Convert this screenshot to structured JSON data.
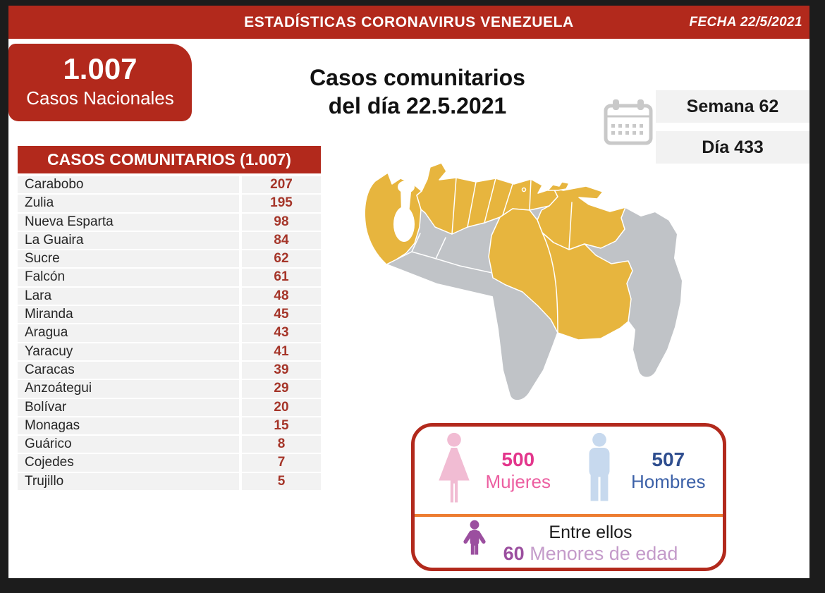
{
  "banner": {
    "title": "ESTADÍSTICAS CORONAVIRUS VENEZUELA",
    "date_label": "FECHA 22/5/2021"
  },
  "national": {
    "value": "1.007",
    "label": "Casos Nacionales"
  },
  "community_title": {
    "line1": "Casos comunitarios",
    "line2": "del día 22.5.2021"
  },
  "period": {
    "week": "Semana 62",
    "day": "Día 433"
  },
  "table": {
    "header": "CASOS COMUNITARIOS (1.007)",
    "rows": [
      {
        "state": "Carabobo",
        "cases": "207"
      },
      {
        "state": "Zulia",
        "cases": "195"
      },
      {
        "state": "Nueva Esparta",
        "cases": "98"
      },
      {
        "state": "La Guaira",
        "cases": "84"
      },
      {
        "state": "Sucre",
        "cases": "62"
      },
      {
        "state": "Falcón",
        "cases": "61"
      },
      {
        "state": "Lara",
        "cases": "48"
      },
      {
        "state": "Miranda",
        "cases": "45"
      },
      {
        "state": "Aragua",
        "cases": "43"
      },
      {
        "state": "Yaracuy",
        "cases": "41"
      },
      {
        "state": "Caracas",
        "cases": "39"
      },
      {
        "state": "Anzoátegui",
        "cases": "29"
      },
      {
        "state": "Bolívar",
        "cases": "20"
      },
      {
        "state": "Monagas",
        "cases": "15"
      },
      {
        "state": "Guárico",
        "cases": "8"
      },
      {
        "state": "Cojedes",
        "cases": "7"
      },
      {
        "state": "Trujillo",
        "cases": "5"
      }
    ]
  },
  "demographics": {
    "women": {
      "value": "500",
      "label": "Mujeres"
    },
    "men": {
      "value": "507",
      "label": "Hombres"
    },
    "minors": {
      "intro": "Entre ellos",
      "value": "60",
      "label": " Menores de edad"
    }
  },
  "chart_data": {
    "type": "table",
    "title": "CASOS COMUNITARIOS (1.007)",
    "categories": [
      "Carabobo",
      "Zulia",
      "Nueva Esparta",
      "La Guaira",
      "Sucre",
      "Falcón",
      "Lara",
      "Miranda",
      "Aragua",
      "Yaracuy",
      "Caracas",
      "Anzoátegui",
      "Bolívar",
      "Monagas",
      "Guárico",
      "Cojedes",
      "Trujillo"
    ],
    "values": [
      207,
      195,
      98,
      84,
      62,
      61,
      48,
      45,
      43,
      41,
      39,
      29,
      20,
      15,
      8,
      7,
      5
    ],
    "totals": {
      "national_cases": 1007,
      "community_cases": 1007,
      "women": 500,
      "men": 507,
      "minors": 60,
      "week": 62,
      "day": 433,
      "date": "22.5.2021"
    }
  },
  "colors": {
    "brand_red": "#b2291c",
    "value_red": "#a53529",
    "row_gray": "#f2f2f2",
    "frame_black": "#1c1c1c",
    "map_yellow": "#e7b53e",
    "map_gray": "#c0c3c7",
    "women_pink": "#e3368c",
    "women_pink_light": "#ec5fa1",
    "women_icon": "#f1bcd3",
    "men_blue": "#2f4e8f",
    "men_blue_light": "#3c61a8",
    "men_icon": "#c7d9ee",
    "minor_purple": "#9b4f9f",
    "minor_purple_light": "#c49bca",
    "divider_orange": "#ed7d31",
    "calendar_gray": "#c9c9c9"
  }
}
